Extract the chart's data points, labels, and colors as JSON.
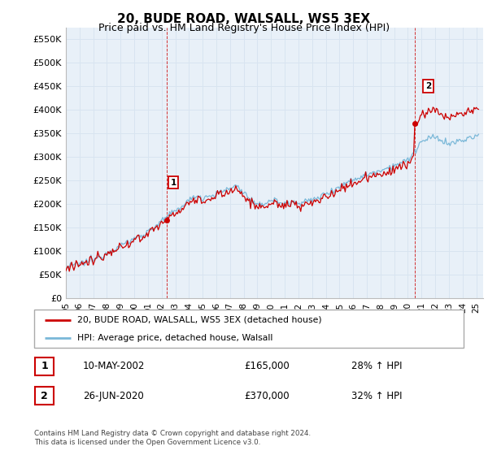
{
  "title": "20, BUDE ROAD, WALSALL, WS5 3EX",
  "subtitle": "Price paid vs. HM Land Registry's House Price Index (HPI)",
  "ylabel_ticks": [
    "£0",
    "£50K",
    "£100K",
    "£150K",
    "£200K",
    "£250K",
    "£300K",
    "£350K",
    "£400K",
    "£450K",
    "£500K",
    "£550K"
  ],
  "ytick_values": [
    0,
    50000,
    100000,
    150000,
    200000,
    250000,
    300000,
    350000,
    400000,
    450000,
    500000,
    550000
  ],
  "ylim": [
    0,
    575000
  ],
  "xlim_start": 1995.0,
  "xlim_end": 2025.5,
  "sale1": {
    "date_num": 2002.36,
    "price": 165000,
    "label": "1",
    "date_str": "10-MAY-2002",
    "hpi_pct": "28% ↑ HPI"
  },
  "sale2": {
    "date_num": 2020.49,
    "price": 370000,
    "label": "2",
    "date_str": "26-JUN-2020",
    "hpi_pct": "32% ↑ HPI"
  },
  "hpi_color": "#7ab8d8",
  "price_color": "#cc0000",
  "marker_color": "#cc0000",
  "grid_color": "#d8e4f0",
  "background_color": "#e8f0f8",
  "axes_bg": "#e8f0f8",
  "legend_entry1": "20, BUDE ROAD, WALSALL, WS5 3EX (detached house)",
  "legend_entry2": "HPI: Average price, detached house, Walsall",
  "table_row1": [
    "1",
    "10-MAY-2002",
    "£165,000",
    "28% ↑ HPI"
  ],
  "table_row2": [
    "2",
    "26-JUN-2020",
    "£370,000",
    "32% ↑ HPI"
  ],
  "footnote": "Contains HM Land Registry data © Crown copyright and database right 2024.\nThis data is licensed under the Open Government Licence v3.0.",
  "title_fontsize": 11,
  "subtitle_fontsize": 9
}
